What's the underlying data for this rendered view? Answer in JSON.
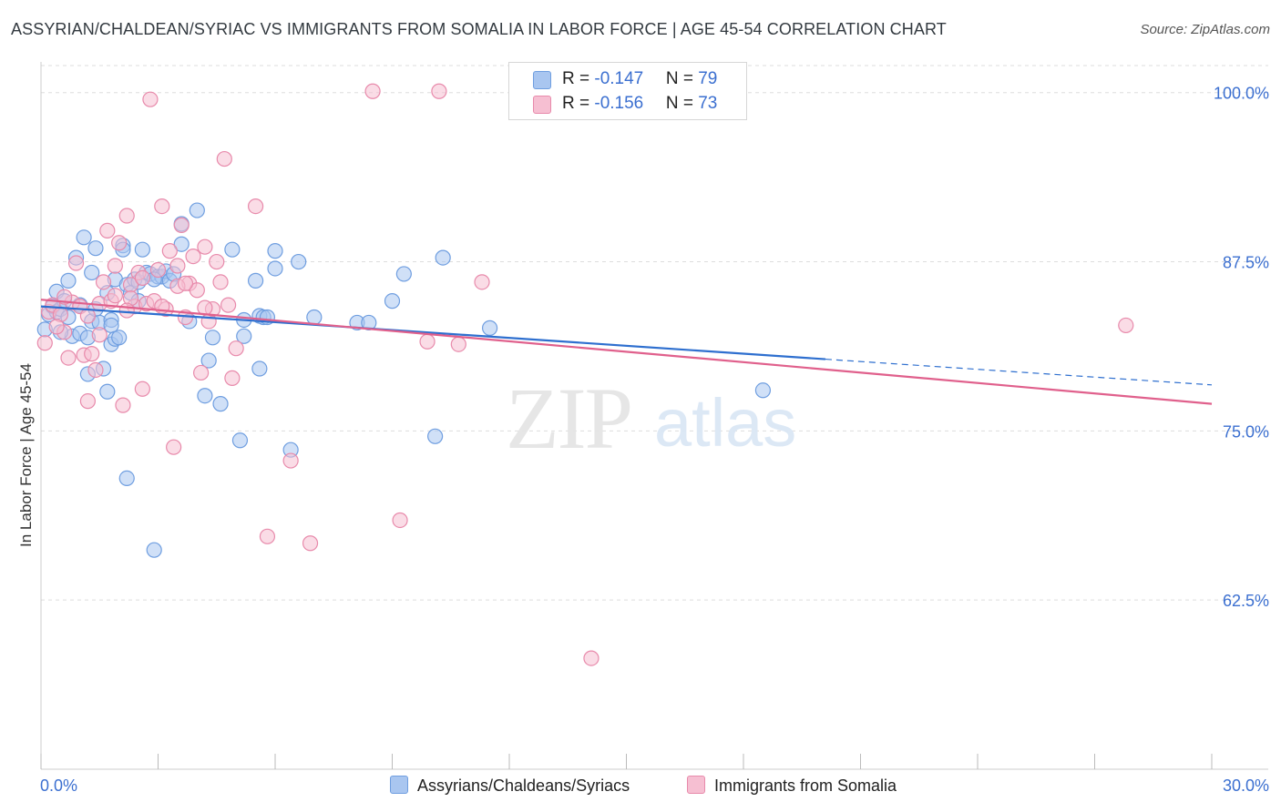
{
  "header": {
    "title": "ASSYRIAN/CHALDEAN/SYRIAC VS IMMIGRANTS FROM SOMALIA IN LABOR FORCE | AGE 45-54 CORRELATION CHART",
    "source": "Source: ZipAtlas.com"
  },
  "watermark": {
    "zip": "ZIP",
    "atlas": "atlas"
  },
  "legend": {
    "series1": {
      "r_label": "R = ",
      "r_value": "-0.147",
      "n_label": "N = ",
      "n_value": "79"
    },
    "series2": {
      "r_label": "R = ",
      "r_value": "-0.156",
      "n_label": "N = ",
      "n_value": "73"
    }
  },
  "colors": {
    "series1_fill": "#a9c6f0",
    "series1_stroke": "#6f9ee0",
    "series1_line": "#2e6fcf",
    "series2_fill": "#f6bfd2",
    "series2_stroke": "#e88aab",
    "series2_line": "#e0608c",
    "axis_text": "#3b6fd0",
    "grid": "#dddddd"
  },
  "chart_data": {
    "type": "scatter",
    "ylabel": "In Labor Force | Age 45-54",
    "xlim": [
      0,
      30
    ],
    "ylim": [
      50,
      102
    ],
    "x_ticks": [
      0,
      3,
      6,
      9,
      12,
      15,
      18,
      21,
      24,
      27,
      30
    ],
    "x_tick_labels": {
      "0": "0.0%",
      "30": "30.0%"
    },
    "y_ticks": [
      62.5,
      75.0,
      87.5,
      100.0
    ],
    "y_tick_labels": [
      "62.5%",
      "75.0%",
      "87.5%",
      "100.0%"
    ],
    "grid": "horizontal dashed",
    "series": [
      {
        "name": "Assyrians/Chaldeans/Syriacs",
        "trend": {
          "x": [
            0,
            20.1
          ],
          "y": [
            84.2,
            80.3
          ],
          "dashed_to_x": 30,
          "dashed_to_y": 78.4
        },
        "points": [
          [
            0.1,
            82.5
          ],
          [
            0.2,
            83.6
          ],
          [
            0.3,
            84.2
          ],
          [
            0.4,
            83.8
          ],
          [
            0.4,
            85.3
          ],
          [
            0.5,
            84.0
          ],
          [
            0.6,
            84.6
          ],
          [
            0.7,
            86.1
          ],
          [
            0.7,
            83.4
          ],
          [
            0.8,
            82.0
          ],
          [
            0.9,
            87.8
          ],
          [
            1.0,
            84.3
          ],
          [
            1.0,
            82.2
          ],
          [
            1.1,
            89.3
          ],
          [
            1.2,
            81.9
          ],
          [
            1.2,
            79.2
          ],
          [
            1.3,
            83.1
          ],
          [
            1.4,
            88.5
          ],
          [
            1.4,
            84.0
          ],
          [
            1.5,
            83.0
          ],
          [
            1.6,
            79.6
          ],
          [
            1.7,
            85.2
          ],
          [
            1.8,
            83.2
          ],
          [
            1.8,
            82.8
          ],
          [
            1.7,
            77.9
          ],
          [
            1.8,
            81.4
          ],
          [
            1.9,
            86.2
          ],
          [
            1.9,
            81.8
          ],
          [
            2.0,
            81.9
          ],
          [
            2.1,
            88.7
          ],
          [
            2.1,
            88.4
          ],
          [
            2.2,
            85.8
          ],
          [
            2.2,
            71.5
          ],
          [
            2.3,
            85.2
          ],
          [
            2.4,
            86.2
          ],
          [
            2.5,
            84.6
          ],
          [
            2.5,
            86.0
          ],
          [
            2.6,
            88.4
          ],
          [
            2.7,
            86.7
          ],
          [
            2.8,
            86.6
          ],
          [
            2.9,
            66.2
          ],
          [
            3.0,
            86.4
          ],
          [
            3.1,
            86.4
          ],
          [
            3.2,
            86.8
          ],
          [
            3.3,
            86.1
          ],
          [
            3.4,
            86.6
          ],
          [
            3.6,
            90.3
          ],
          [
            3.6,
            88.8
          ],
          [
            3.8,
            83.1
          ],
          [
            4.0,
            91.3
          ],
          [
            4.3,
            80.2
          ],
          [
            4.2,
            77.6
          ],
          [
            4.4,
            81.9
          ],
          [
            4.6,
            77.0
          ],
          [
            4.9,
            88.4
          ],
          [
            5.1,
            74.3
          ],
          [
            5.2,
            82.0
          ],
          [
            5.2,
            83.2
          ],
          [
            5.5,
            86.1
          ],
          [
            5.6,
            83.5
          ],
          [
            5.6,
            79.6
          ],
          [
            5.7,
            83.4
          ],
          [
            5.8,
            83.4
          ],
          [
            6.0,
            87.0
          ],
          [
            6.0,
            88.3
          ],
          [
            6.4,
            73.6
          ],
          [
            6.6,
            87.5
          ],
          [
            7.0,
            83.4
          ],
          [
            8.1,
            83.0
          ],
          [
            8.4,
            83.0
          ],
          [
            9.0,
            84.6
          ],
          [
            9.3,
            86.6
          ],
          [
            10.1,
            74.6
          ],
          [
            10.3,
            87.8
          ],
          [
            11.5,
            82.6
          ],
          [
            18.5,
            78.0
          ],
          [
            1.3,
            86.7
          ],
          [
            2.9,
            86.2
          ],
          [
            0.5,
            82.3
          ]
        ]
      },
      {
        "name": "Immigrants from Somalia",
        "trend": {
          "x": [
            0,
            30
          ],
          "y": [
            84.7,
            77.0
          ]
        },
        "points": [
          [
            0.1,
            81.5
          ],
          [
            0.2,
            83.8
          ],
          [
            0.3,
            84.3
          ],
          [
            0.5,
            83.6
          ],
          [
            0.6,
            82.3
          ],
          [
            0.7,
            80.4
          ],
          [
            0.8,
            84.5
          ],
          [
            0.9,
            87.4
          ],
          [
            1.0,
            84.2
          ],
          [
            1.1,
            80.6
          ],
          [
            1.2,
            77.2
          ],
          [
            1.3,
            80.7
          ],
          [
            1.4,
            79.5
          ],
          [
            1.5,
            84.4
          ],
          [
            1.6,
            86.0
          ],
          [
            1.7,
            89.8
          ],
          [
            1.8,
            84.6
          ],
          [
            1.9,
            87.2
          ],
          [
            2.0,
            88.9
          ],
          [
            2.1,
            76.9
          ],
          [
            2.2,
            90.9
          ],
          [
            2.3,
            85.8
          ],
          [
            2.4,
            84.2
          ],
          [
            2.5,
            86.7
          ],
          [
            2.6,
            78.1
          ],
          [
            2.7,
            84.4
          ],
          [
            2.8,
            99.5
          ],
          [
            2.9,
            84.6
          ],
          [
            3.0,
            86.9
          ],
          [
            3.1,
            91.6
          ],
          [
            3.2,
            84.0
          ],
          [
            3.3,
            88.3
          ],
          [
            3.4,
            73.8
          ],
          [
            3.5,
            87.2
          ],
          [
            3.6,
            90.2
          ],
          [
            3.7,
            83.4
          ],
          [
            3.8,
            85.9
          ],
          [
            3.9,
            87.9
          ],
          [
            4.0,
            85.4
          ],
          [
            4.1,
            79.3
          ],
          [
            4.2,
            88.6
          ],
          [
            4.3,
            83.1
          ],
          [
            4.4,
            84.0
          ],
          [
            4.5,
            87.5
          ],
          [
            4.6,
            86.0
          ],
          [
            4.7,
            95.1
          ],
          [
            4.8,
            84.3
          ],
          [
            4.9,
            78.9
          ],
          [
            5.0,
            81.1
          ],
          [
            5.5,
            91.6
          ],
          [
            5.8,
            67.2
          ],
          [
            6.4,
            72.8
          ],
          [
            6.9,
            66.7
          ],
          [
            8.5,
            100.1
          ],
          [
            9.2,
            68.4
          ],
          [
            9.9,
            81.6
          ],
          [
            10.2,
            100.1
          ],
          [
            10.7,
            81.4
          ],
          [
            11.3,
            86.0
          ],
          [
            14.1,
            58.2
          ],
          [
            27.8,
            82.8
          ],
          [
            0.4,
            82.7
          ],
          [
            0.6,
            84.9
          ],
          [
            1.2,
            83.5
          ],
          [
            1.9,
            85.0
          ],
          [
            2.3,
            84.8
          ],
          [
            2.6,
            86.3
          ],
          [
            3.1,
            84.2
          ],
          [
            3.5,
            85.7
          ],
          [
            3.7,
            85.9
          ],
          [
            4.2,
            84.1
          ],
          [
            1.5,
            82.1
          ],
          [
            2.2,
            83.9
          ]
        ]
      }
    ]
  },
  "bottom_legend": {
    "item1": "Assyrians/Chaldeans/Syriacs",
    "item2": "Immigrants from Somalia"
  }
}
